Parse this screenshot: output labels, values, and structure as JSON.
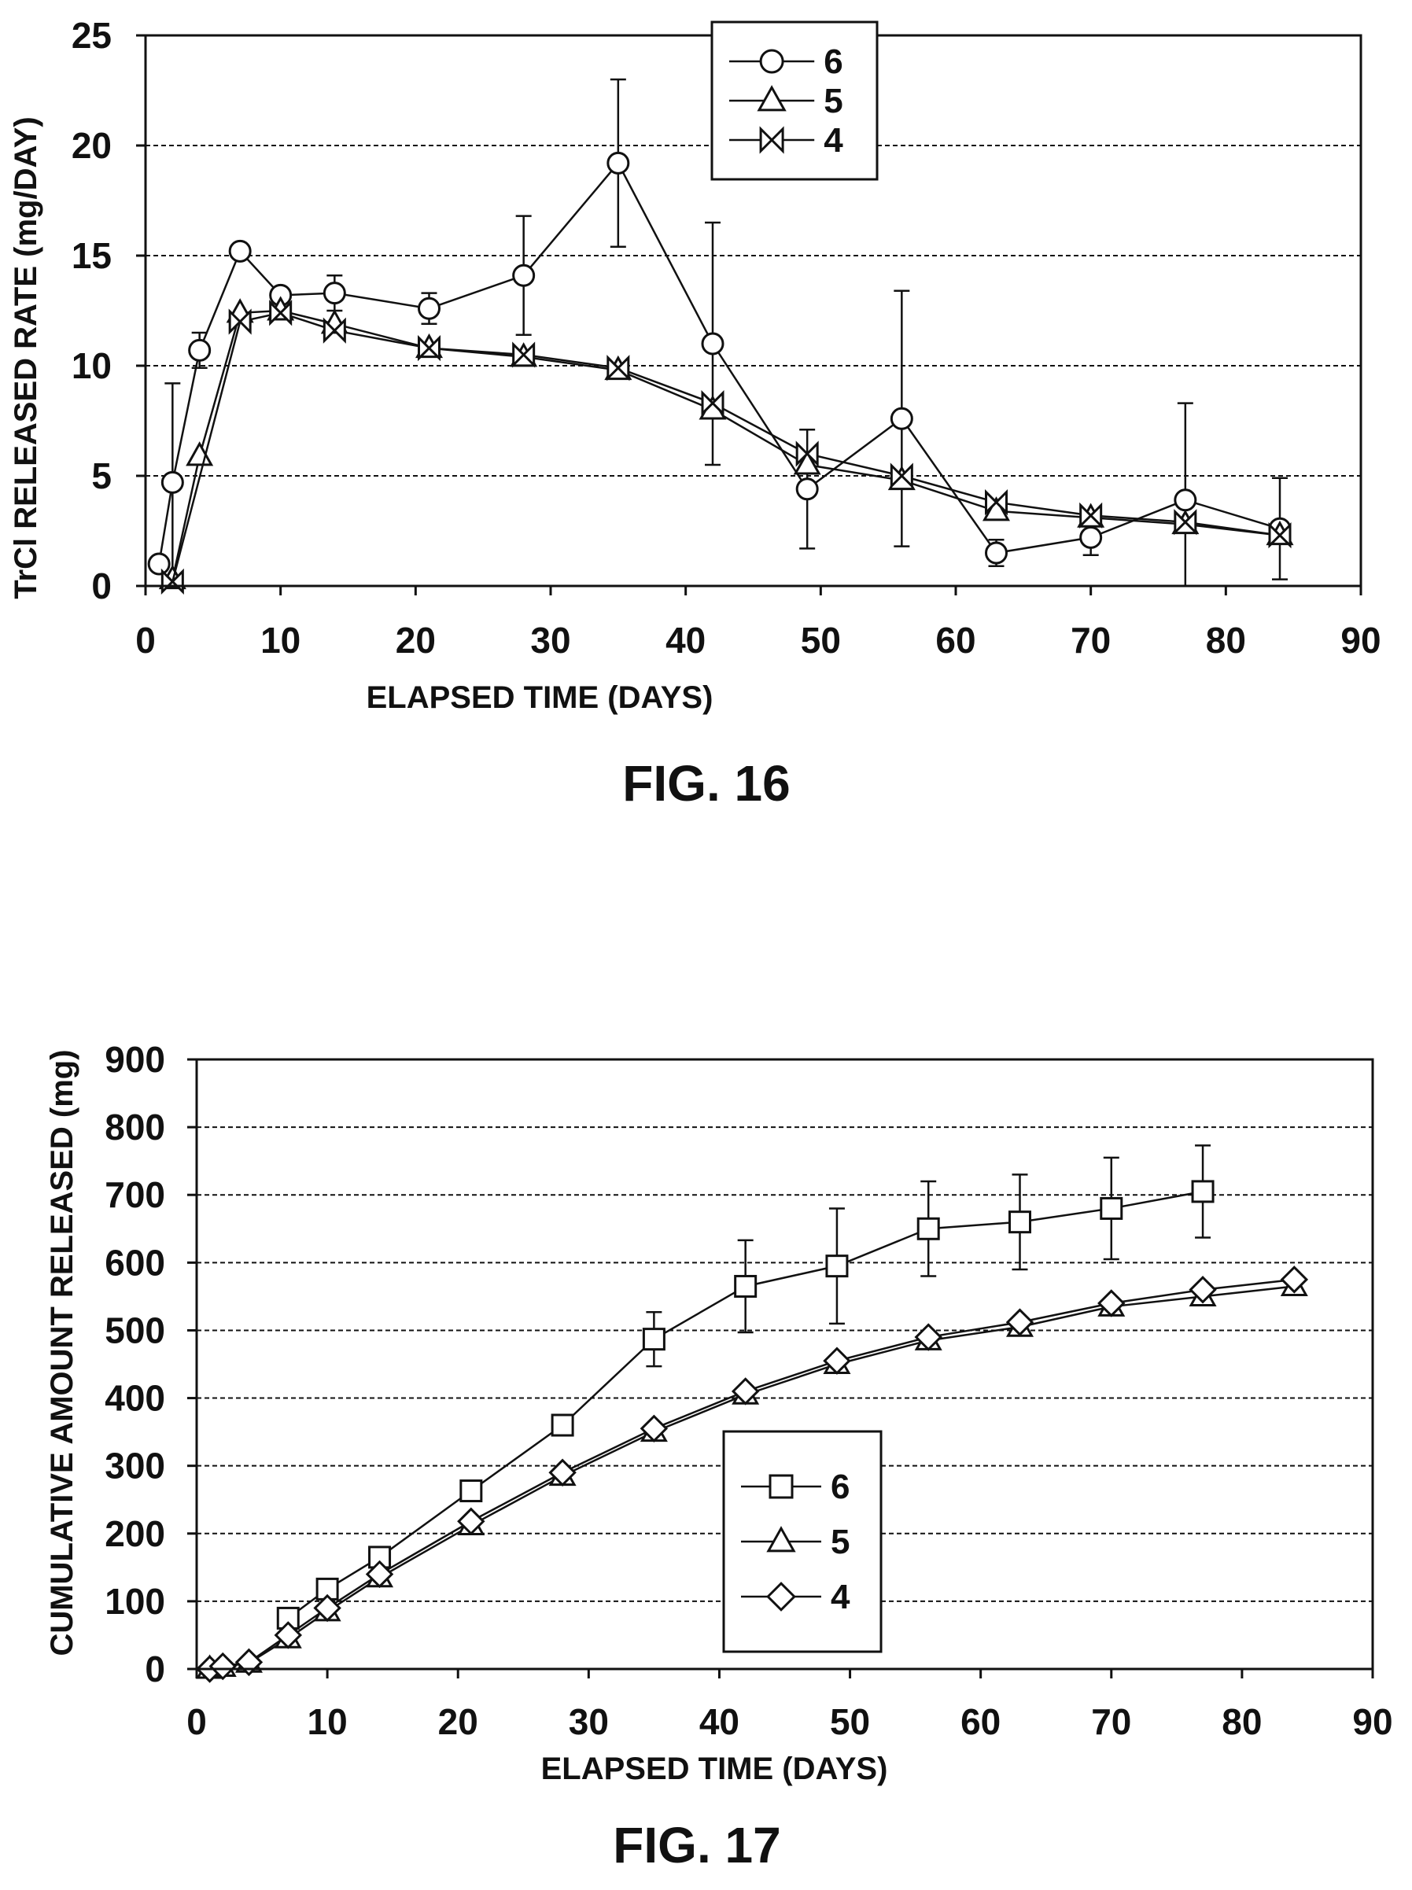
{
  "colors": {
    "ink": "#111111",
    "background": "#ffffff"
  },
  "chart_data": [
    {
      "type": "line",
      "figure_label": "FIG. 16",
      "xlabel": "ELAPSED TIME (DAYS)",
      "ylabel": "TrCl RELEASED RATE (mg/DAY)",
      "xlim": [
        0,
        90
      ],
      "ylim": [
        0,
        25
      ],
      "xticks": [
        "0",
        "10",
        "20",
        "30",
        "40",
        "50",
        "60",
        "70",
        "80",
        "90"
      ],
      "yticks": [
        "0",
        "5",
        "10",
        "15",
        "20",
        "25"
      ],
      "grid": true,
      "legend_position": "top-center",
      "series": [
        {
          "name": "6",
          "marker": "circle",
          "x": [
            1,
            2,
            4,
            7,
            10,
            14,
            21,
            28,
            35,
            42,
            49,
            56,
            63,
            70,
            77,
            84
          ],
          "y": [
            1.0,
            4.7,
            10.7,
            15.2,
            13.2,
            13.3,
            12.6,
            14.1,
            19.2,
            11.0,
            4.4,
            7.6,
            1.5,
            2.2,
            3.9,
            2.6
          ],
          "error": [
            0,
            4.5,
            0.8,
            0,
            0,
            0.8,
            0.7,
            2.7,
            3.8,
            5.5,
            2.7,
            5.8,
            0.6,
            0.8,
            4.4,
            2.3
          ]
        },
        {
          "name": "5",
          "marker": "triangle",
          "x": [
            2,
            4,
            7,
            10,
            14,
            21,
            28,
            35,
            42,
            49,
            56,
            63,
            70,
            77,
            84
          ],
          "y": [
            0.3,
            5.9,
            12.4,
            12.5,
            11.9,
            10.8,
            10.4,
            9.8,
            8.0,
            5.5,
            4.8,
            3.4,
            3.1,
            2.8,
            2.3
          ],
          "error": [
            0,
            0,
            0,
            0,
            0,
            0,
            0,
            0,
            0,
            0,
            0,
            0,
            0,
            0,
            0
          ]
        },
        {
          "name": "4",
          "marker": "bowtie",
          "x": [
            2,
            7,
            10,
            14,
            21,
            28,
            35,
            42,
            49,
            56,
            63,
            70,
            77,
            84
          ],
          "y": [
            0.2,
            12.0,
            12.4,
            11.6,
            10.8,
            10.5,
            9.9,
            8.3,
            6.0,
            5.0,
            3.8,
            3.2,
            2.9,
            2.3
          ],
          "error": [
            0,
            0,
            0,
            0,
            0,
            0,
            0,
            0,
            0,
            0,
            0,
            0,
            0,
            0
          ]
        }
      ]
    },
    {
      "type": "line",
      "figure_label": "FIG. 17",
      "xlabel": "ELAPSED TIME (DAYS)",
      "ylabel": "CUMULATIVE AMOUNT RELEASED (mg)",
      "xlim": [
        0,
        90
      ],
      "ylim": [
        0,
        900
      ],
      "xticks": [
        "0",
        "10",
        "20",
        "30",
        "40",
        "50",
        "60",
        "70",
        "80",
        "90"
      ],
      "yticks": [
        "0",
        "100",
        "200",
        "300",
        "400",
        "500",
        "600",
        "700",
        "800",
        "900"
      ],
      "grid": true,
      "legend_position": "center",
      "series": [
        {
          "name": "6",
          "marker": "square",
          "x": [
            7,
            10,
            14,
            21,
            28,
            35,
            42,
            49,
            56,
            63,
            70,
            77
          ],
          "y": [
            75,
            118,
            165,
            263,
            360,
            487,
            565,
            595,
            650,
            660,
            680,
            705
          ],
          "error": [
            0,
            0,
            0,
            0,
            12,
            40,
            68,
            85,
            70,
            70,
            75,
            68
          ]
        },
        {
          "name": "5",
          "marker": "triangle",
          "x": [
            1,
            2,
            4,
            7,
            10,
            14,
            21,
            28,
            35,
            42,
            49,
            56,
            63,
            70,
            77,
            84
          ],
          "y": [
            0,
            3,
            9,
            45,
            85,
            135,
            212,
            285,
            350,
            405,
            450,
            485,
            505,
            535,
            550,
            565
          ],
          "error": [
            0,
            0,
            0,
            0,
            0,
            0,
            0,
            0,
            0,
            0,
            0,
            0,
            0,
            0,
            0,
            0
          ]
        },
        {
          "name": "4",
          "marker": "diamond",
          "x": [
            1,
            2,
            4,
            7,
            10,
            14,
            21,
            28,
            35,
            42,
            49,
            56,
            63,
            70,
            77,
            84
          ],
          "y": [
            0,
            4,
            10,
            50,
            90,
            140,
            218,
            290,
            355,
            410,
            455,
            490,
            512,
            540,
            560,
            575
          ],
          "error": [
            0,
            0,
            0,
            0,
            0,
            0,
            0,
            0,
            0,
            0,
            0,
            0,
            0,
            0,
            0,
            0
          ]
        }
      ]
    }
  ]
}
